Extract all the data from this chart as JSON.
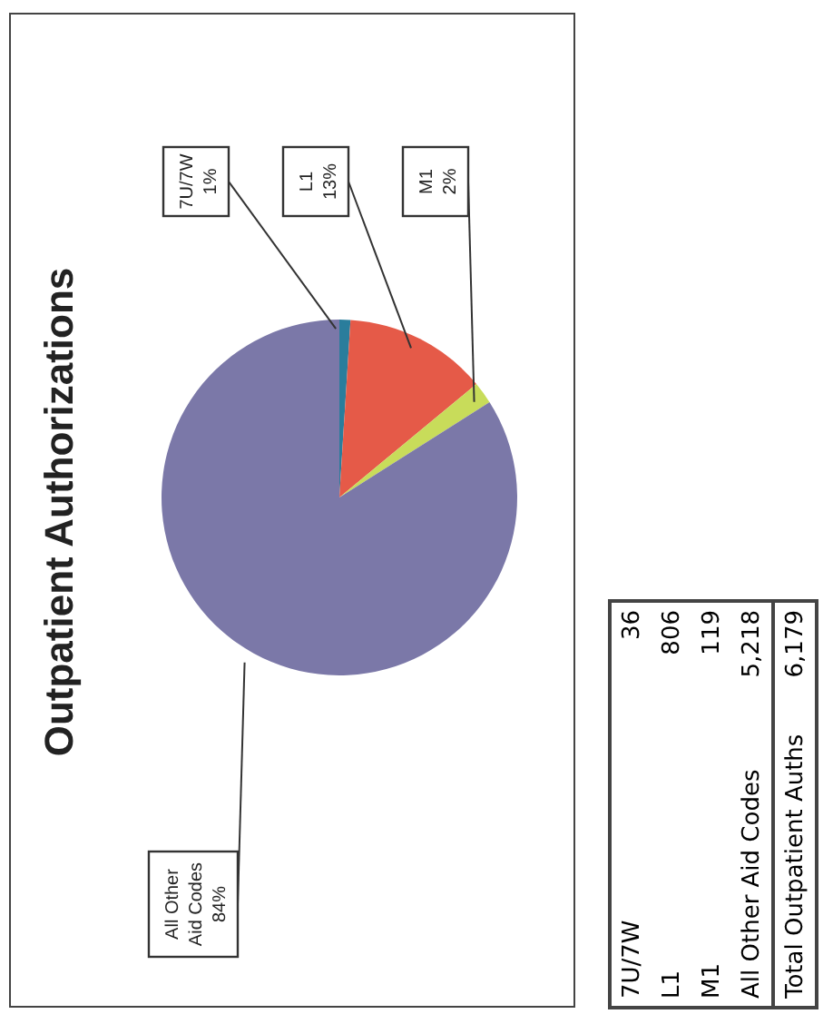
{
  "chart_data": {
    "type": "pie",
    "title": "Outpatient Authorizations",
    "categories": [
      "7U/7W",
      "L1",
      "M1",
      "All Other Aid Codes"
    ],
    "values": [
      1,
      13,
      2,
      84
    ],
    "value_labels": [
      "1%",
      "13%",
      "2%",
      "84%"
    ],
    "colors": [
      "#2a7d9c",
      "#e55a48",
      "#c8dc5a",
      "#7b78a8"
    ],
    "totals": [
      "6,179"
    ],
    "annotations": [
      "36",
      "806",
      "119",
      "5,218",
      "Total Outpatient Auths"
    ],
    "legend": false
  }
}
